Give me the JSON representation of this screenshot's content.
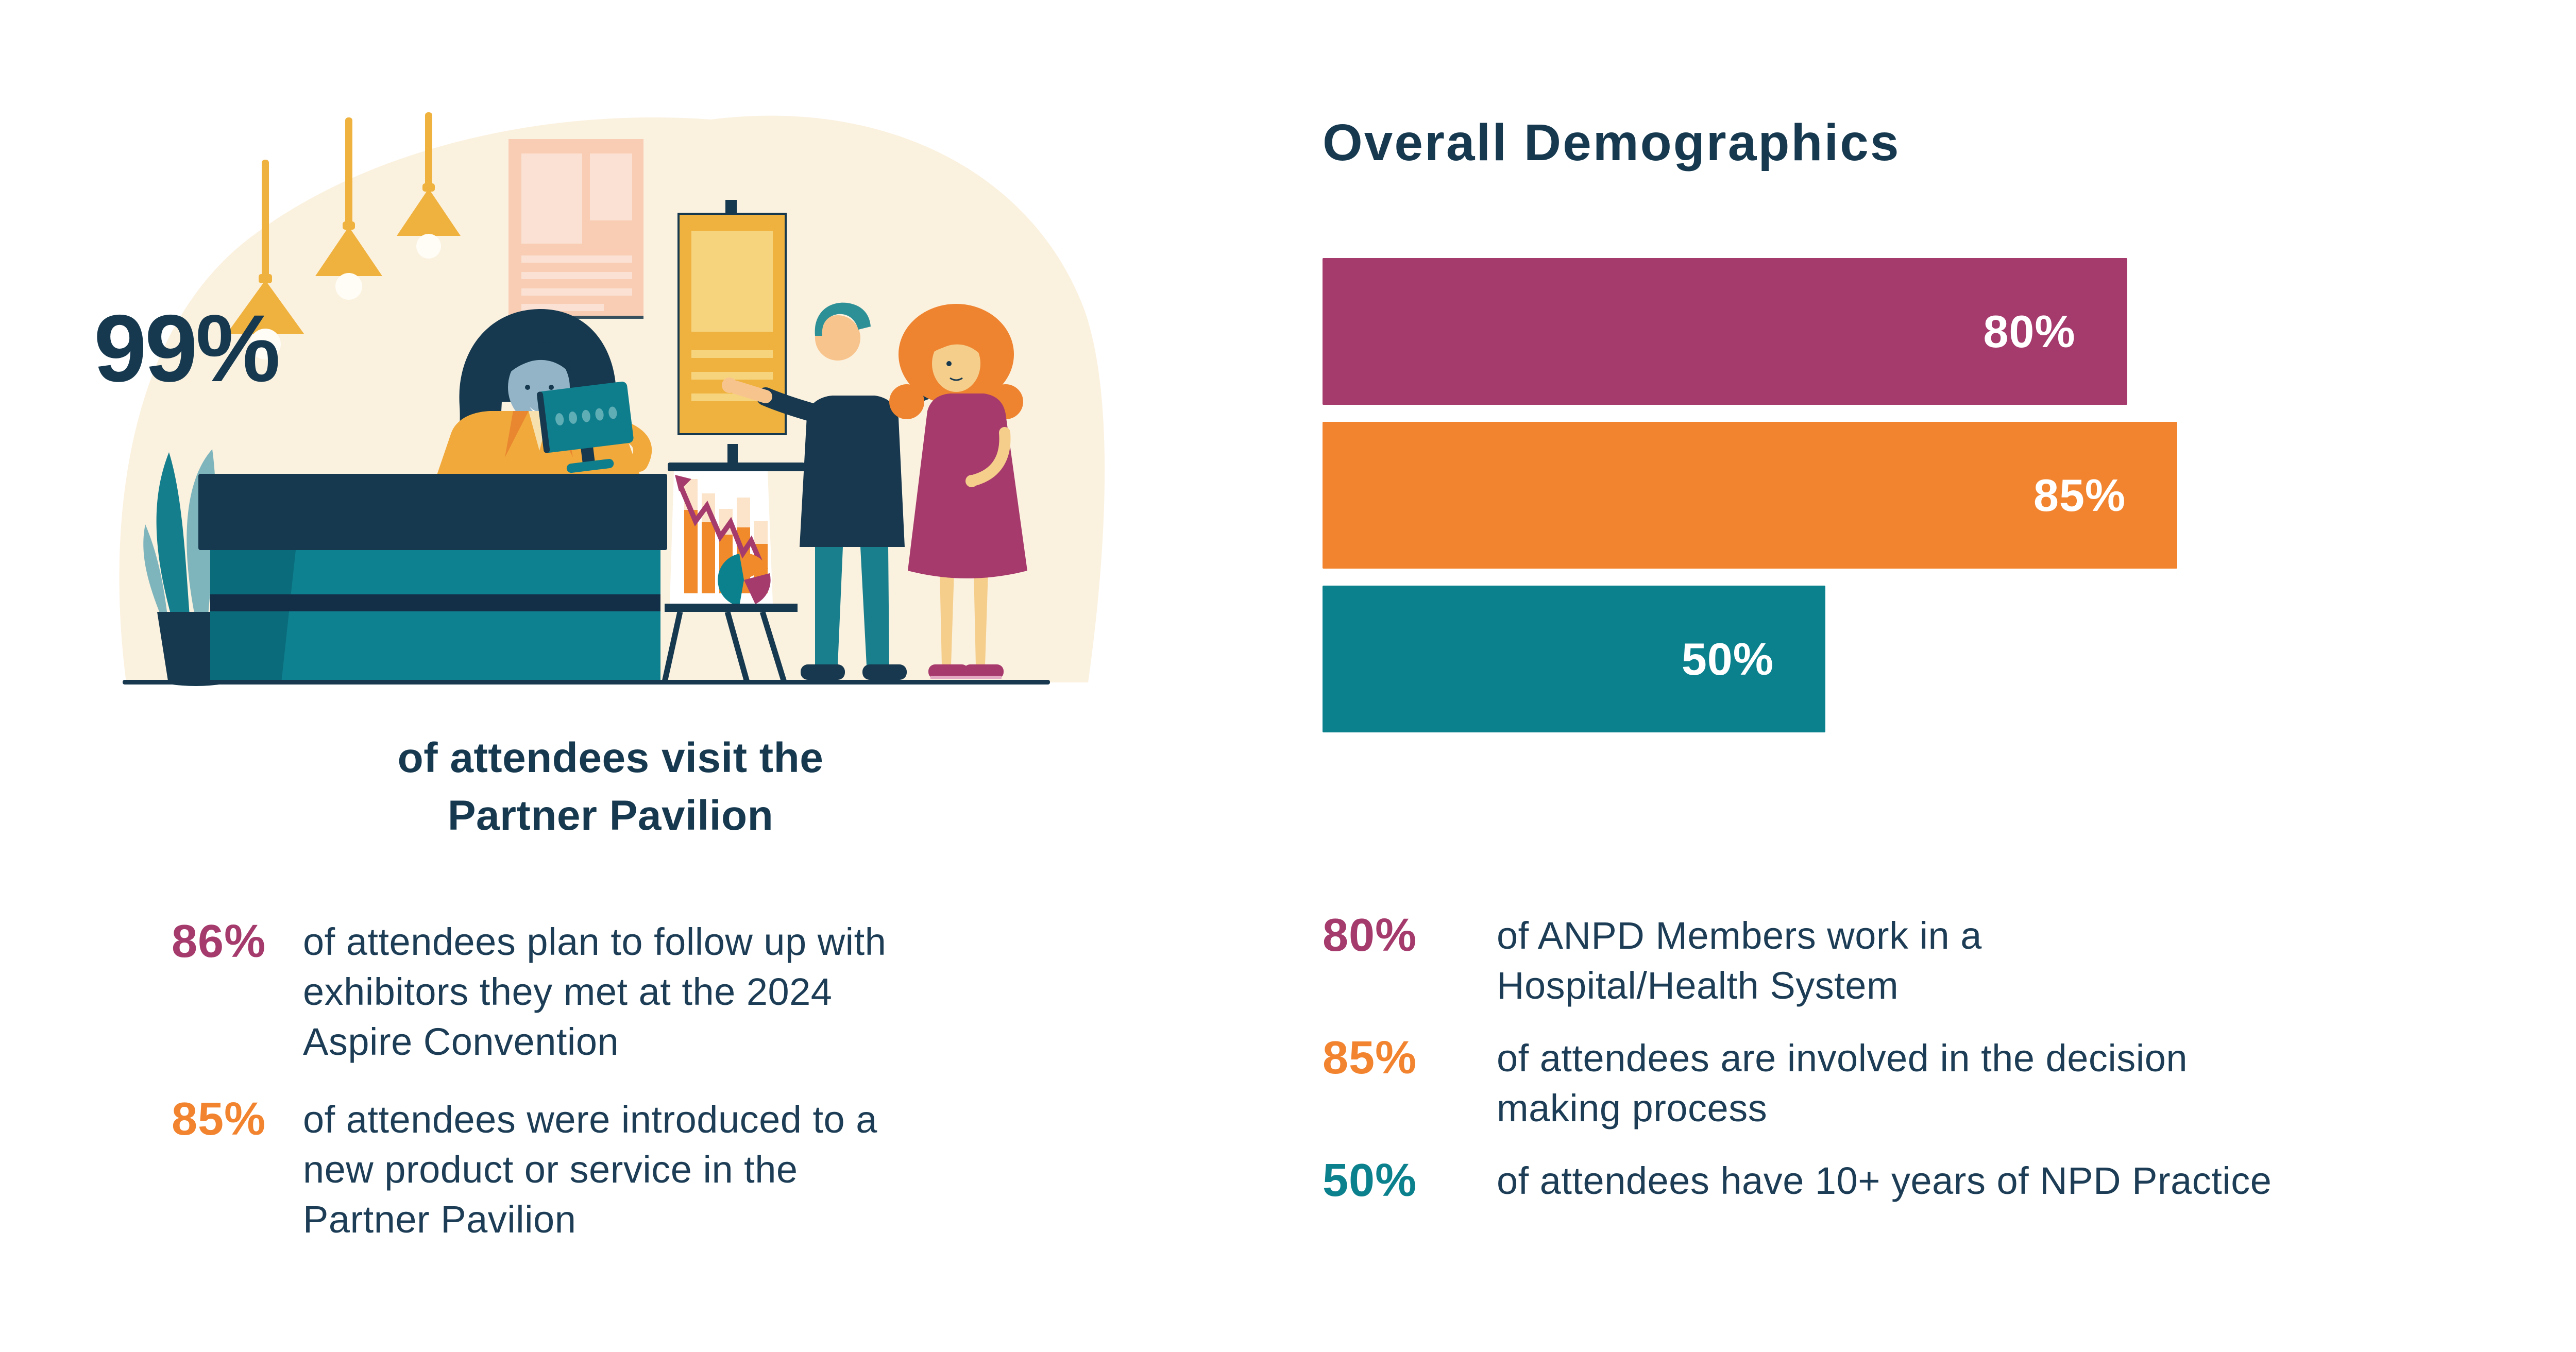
{
  "colors": {
    "navy": "#16394F",
    "magenta": "#A53A6C",
    "orange": "#F28430",
    "teal": "#0C818E",
    "cream": "#FBF1DF",
    "yellow": "#F0B23E",
    "peach": "#F8CDB4",
    "white": "#FFFFFF"
  },
  "left_panel": {
    "hero_stat": {
      "value": "99%",
      "color": "#16394F"
    },
    "caption": {
      "line1": "of attendees visit the",
      "line2": "Partner Pavilion"
    },
    "stats": [
      {
        "value": "86%",
        "color": "#A53A6C",
        "lines": [
          "of attendees plan to follow up with",
          "exhibitors they met at the 2024",
          "Aspire Convention"
        ]
      },
      {
        "value": "85%",
        "color": "#F28430",
        "lines": [
          "of attendees were introduced to a",
          "new product or service in the",
          "Partner Pavilion"
        ]
      }
    ],
    "illustration_icons": [
      "pendant-lamp",
      "wall-poster",
      "reception-desk",
      "computer-monitor",
      "receptionist",
      "visitor-couple",
      "flipchart-easel",
      "potted-plant"
    ]
  },
  "right_panel": {
    "stats": [
      {
        "value": "80%",
        "color": "#A53A6C",
        "lines": [
          "of ANPD Members work in a",
          "Hospital/Health System"
        ]
      },
      {
        "value": "85%",
        "color": "#F28430",
        "lines": [
          "of attendees are involved in the decision",
          "making process"
        ]
      },
      {
        "value": "50%",
        "color": "#0C818E",
        "lines": [
          "of attendees have 10+ years of NPD Practice"
        ]
      }
    ]
  },
  "chart_data": {
    "type": "bar",
    "orientation": "horizontal",
    "title": "Overall Demographics",
    "xlabel": "",
    "ylabel": "",
    "xlim": [
      0,
      100
    ],
    "unit": "%",
    "axes_visible": false,
    "grid": false,
    "legend": false,
    "value_label_position": "inside-right",
    "bars": [
      {
        "label": "80%",
        "value": 80,
        "color": "#A53A6C"
      },
      {
        "label": "85%",
        "value": 85,
        "color": "#F28430"
      },
      {
        "label": "50%",
        "value": 50,
        "color": "#0C818E"
      }
    ]
  }
}
